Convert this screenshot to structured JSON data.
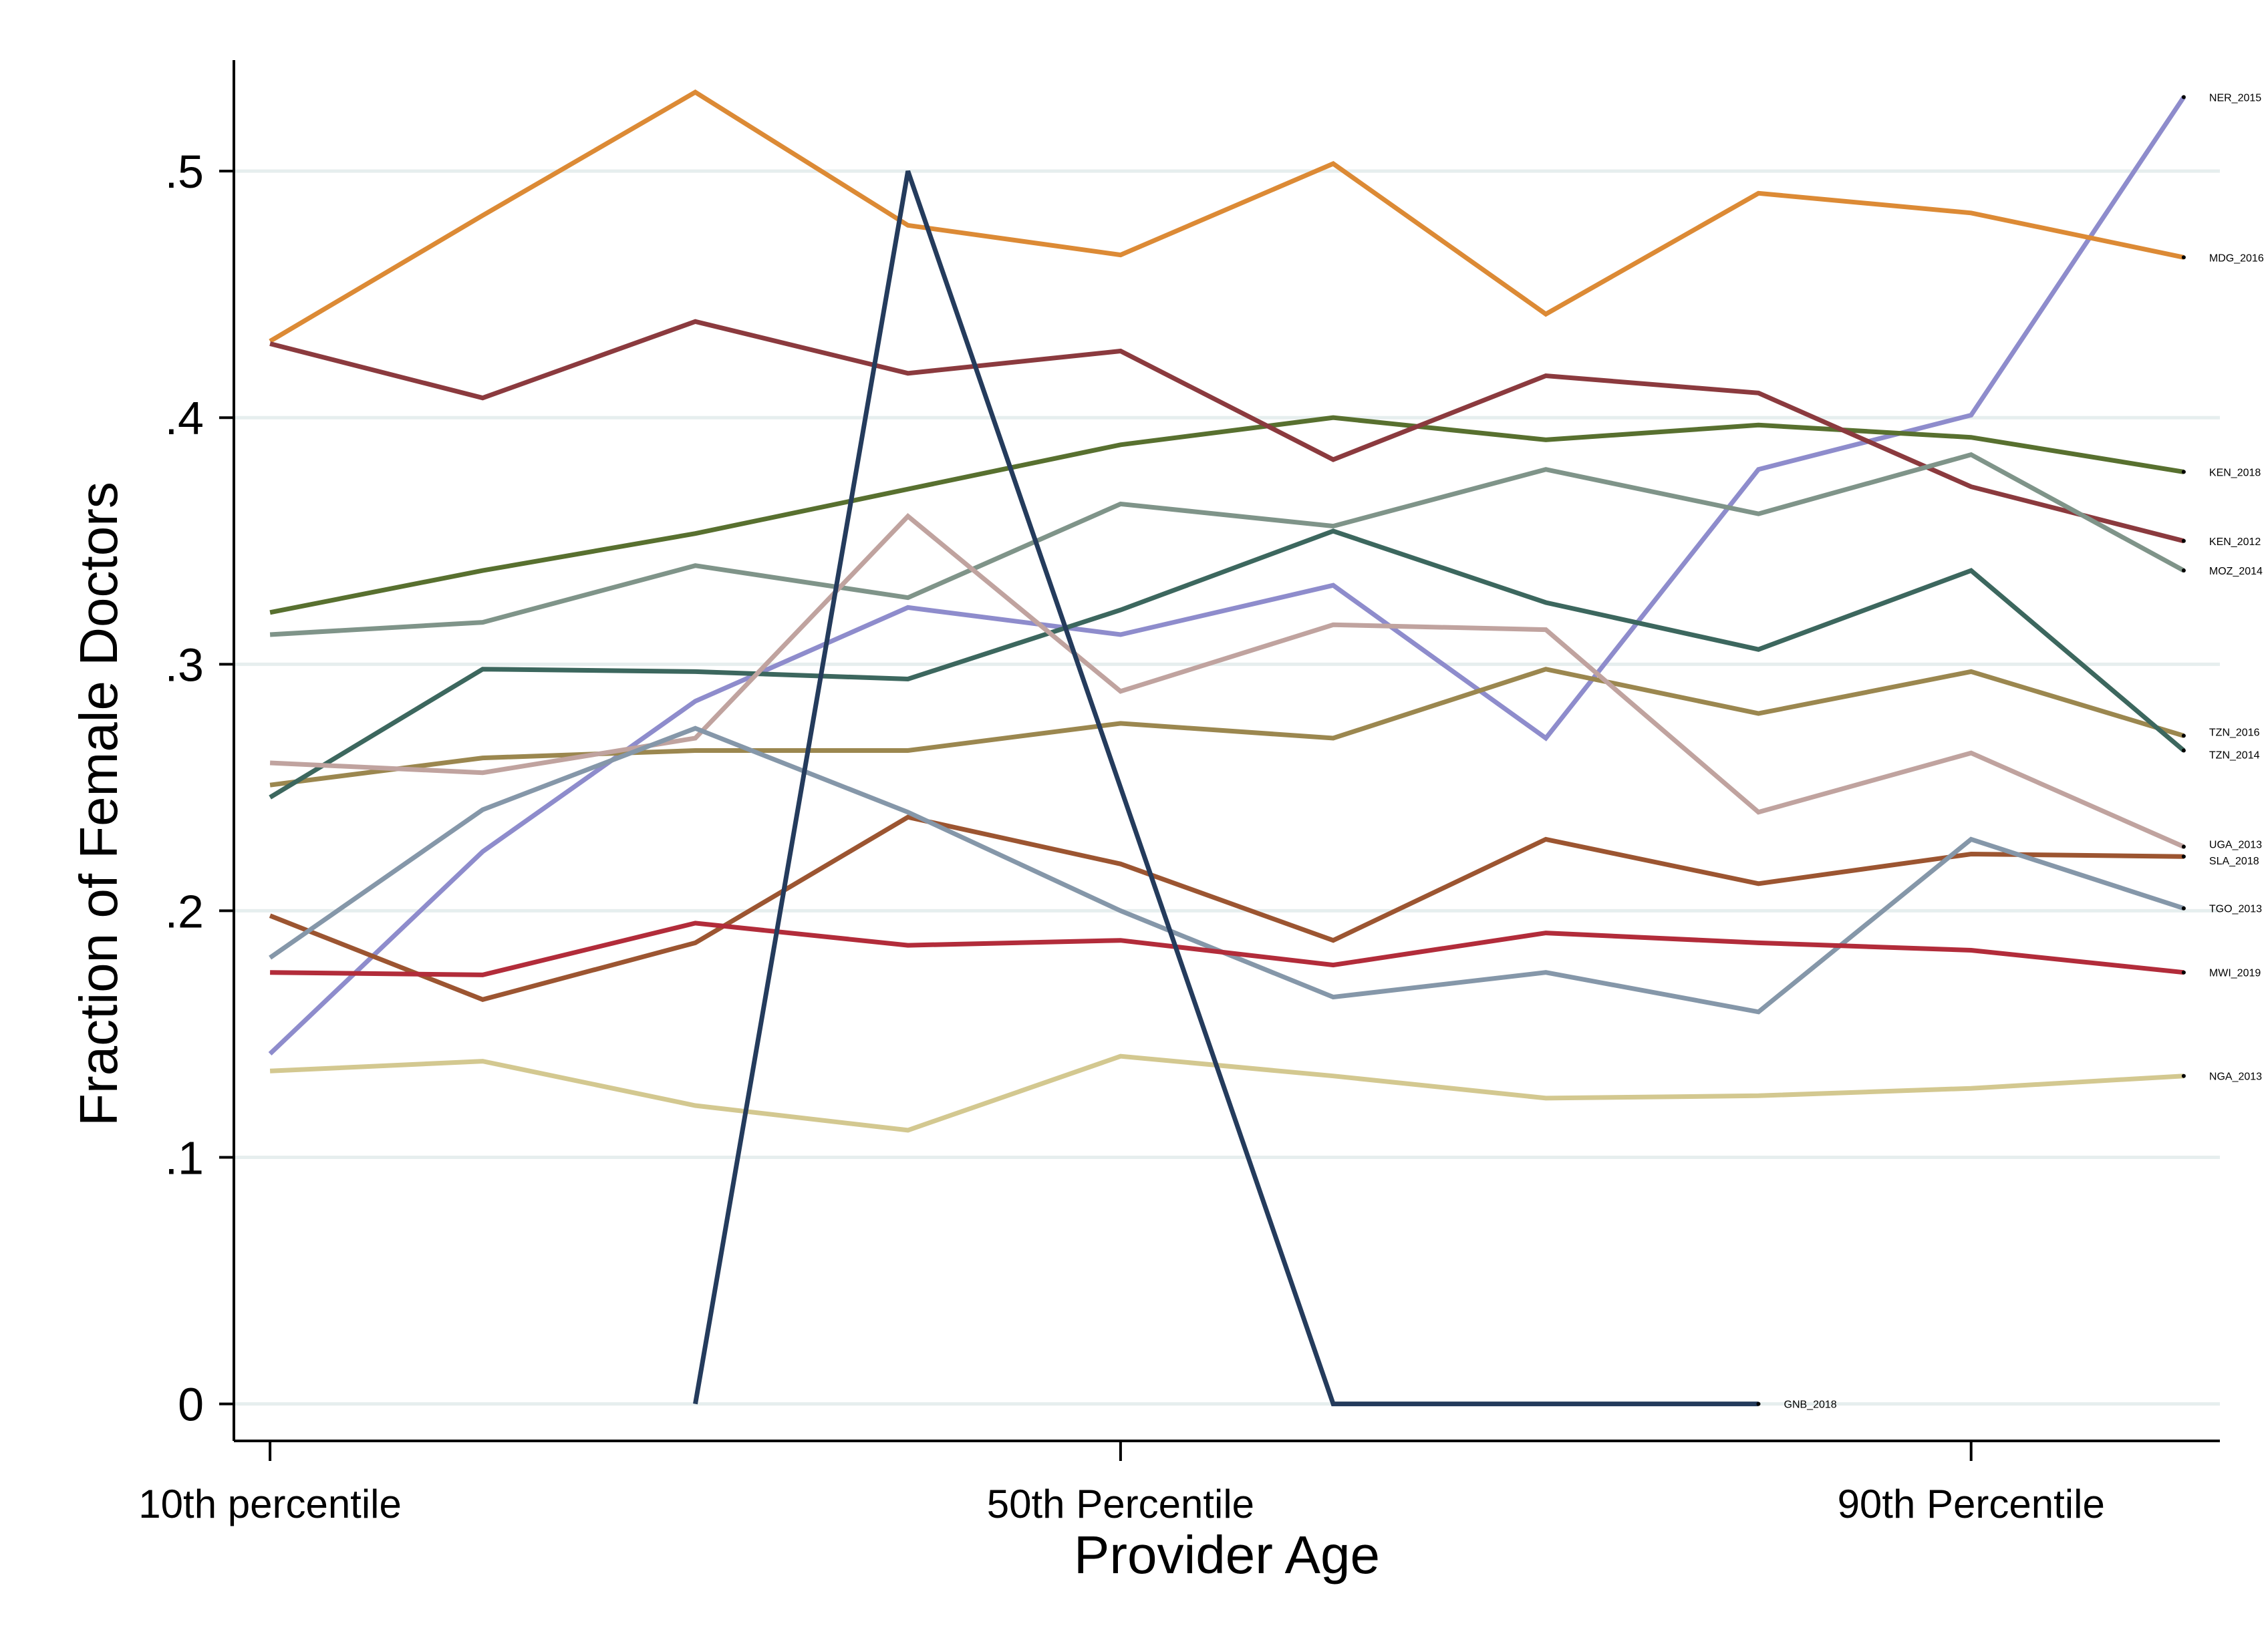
{
  "chart_data": {
    "type": "line",
    "title": "",
    "xlabel": "Provider Age",
    "ylabel": "Fraction of Female Doctors",
    "ylim": [
      -0.015,
      0.545
    ],
    "yticks": [
      {
        "value": 0,
        "label": "0"
      },
      {
        "value": 0.1,
        "label": ".1"
      },
      {
        "value": 0.2,
        "label": ".2"
      },
      {
        "value": 0.3,
        "label": ".3"
      },
      {
        "value": 0.4,
        "label": ".4"
      },
      {
        "value": 0.5,
        "label": ".5"
      }
    ],
    "xlim": [
      0.83,
      10.17
    ],
    "xticks": [
      {
        "value": 1,
        "label": "10th percentile"
      },
      {
        "value": 5,
        "label": "50th Percentile"
      },
      {
        "value": 9,
        "label": "90th Percentile"
      }
    ],
    "x": [
      1,
      2,
      3,
      4,
      5,
      6,
      7,
      8,
      9,
      10
    ],
    "grid": "horizontal",
    "legend": "none; series labels at line ends",
    "series": [
      {
        "name": "NER_2015",
        "color": "#8e8ccc",
        "values": [
          0.142,
          0.224,
          0.285,
          0.323,
          0.312,
          0.332,
          0.27,
          0.379,
          0.401,
          0.53
        ]
      },
      {
        "name": "MDG_2016",
        "color": "#dc8a35",
        "values": [
          0.431,
          0.482,
          0.532,
          0.478,
          0.466,
          0.503,
          0.442,
          0.491,
          0.483,
          0.465
        ]
      },
      {
        "name": "KEN_2018",
        "color": "#58702f",
        "values": [
          0.321,
          0.338,
          0.353,
          0.371,
          0.389,
          0.4,
          0.391,
          0.397,
          0.392,
          0.378
        ]
      },
      {
        "name": "KEN_2012",
        "color": "#8b3a3e",
        "values": [
          0.43,
          0.408,
          0.439,
          0.418,
          0.427,
          0.383,
          0.417,
          0.41,
          0.372,
          0.35
        ]
      },
      {
        "name": "MOZ_2014",
        "color": "#7f9489",
        "values": [
          0.312,
          0.317,
          0.34,
          0.327,
          0.365,
          0.356,
          0.379,
          0.361,
          0.385,
          0.338
        ]
      },
      {
        "name": "TZN_2016",
        "color": "#9b874f",
        "values": [
          0.251,
          0.262,
          0.265,
          0.265,
          0.276,
          0.27,
          0.298,
          0.28,
          0.297,
          0.271
        ]
      },
      {
        "name": "TZN_2014",
        "color": "#3c675e",
        "values": [
          0.246,
          0.298,
          0.297,
          0.294,
          0.322,
          0.354,
          0.325,
          0.306,
          0.338,
          0.265
        ]
      },
      {
        "name": "UGA_2013",
        "color": "#c0a39f",
        "values": [
          0.26,
          0.256,
          0.27,
          0.36,
          0.289,
          0.316,
          0.314,
          0.24,
          0.264,
          0.226
        ]
      },
      {
        "name": "SLA_2018",
        "color": "#9c5531",
        "values": [
          0.198,
          0.164,
          0.187,
          0.238,
          0.219,
          0.188,
          0.229,
          0.211,
          0.223,
          0.222
        ]
      },
      {
        "name": "TGO_2013",
        "color": "#8597a9",
        "values": [
          0.181,
          0.241,
          0.274,
          0.24,
          0.2,
          0.165,
          0.175,
          0.159,
          0.229,
          0.201
        ]
      },
      {
        "name": "MWI_2019",
        "color": "#b22c3a",
        "values": [
          0.175,
          0.174,
          0.195,
          0.186,
          0.188,
          0.178,
          0.191,
          0.187,
          0.184,
          0.175
        ]
      },
      {
        "name": "NGA_2013",
        "color": "#d3c890",
        "values": [
          0.135,
          0.139,
          0.121,
          0.111,
          0.141,
          0.133,
          0.124,
          0.125,
          0.128,
          0.133
        ]
      },
      {
        "name": "GNB_2018",
        "color": "#243b5c",
        "values": [
          null,
          null,
          0.0,
          0.5,
          0.25,
          0.0,
          0.0,
          0.0,
          null,
          null
        ]
      }
    ]
  }
}
